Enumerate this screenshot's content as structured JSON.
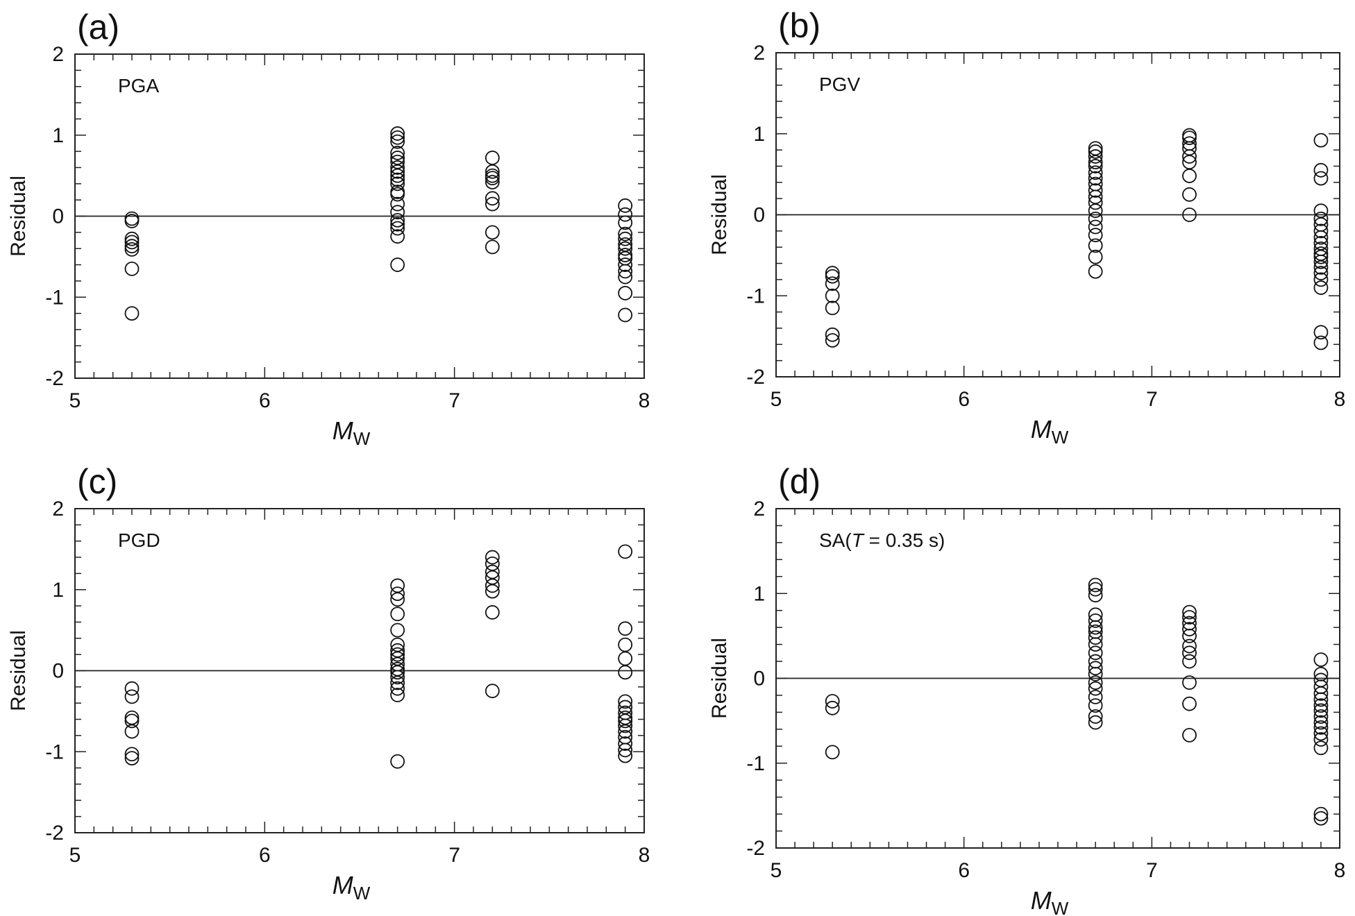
{
  "chart_data": [
    {
      "type": "scatter",
      "panel": "(a)",
      "annotation": "PGA",
      "xlabel": "M",
      "xlabel_sub": "W",
      "ylabel": "Residual",
      "xlim": [
        5,
        8
      ],
      "ylim": [
        -2,
        2
      ],
      "xticks": [
        "5",
        "6",
        "7",
        "8"
      ],
      "yticks": [
        "2",
        "1",
        "0",
        "-1",
        "-2"
      ],
      "zero_line": true,
      "series": [
        {
          "x": 5.3,
          "y": [
            -0.03,
            -0.06,
            -0.28,
            -0.32,
            -0.37,
            -0.41,
            -0.65,
            -1.2
          ]
        },
        {
          "x": 6.7,
          "y": [
            1.02,
            0.97,
            0.92,
            0.78,
            0.72,
            0.67,
            0.6,
            0.55,
            0.5,
            0.45,
            0.4,
            0.3,
            0.27,
            0.15,
            0.05,
            -0.05,
            -0.1,
            -0.15,
            -0.25,
            -0.6
          ]
        },
        {
          "x": 7.2,
          "y": [
            0.72,
            0.55,
            0.5,
            0.47,
            0.42,
            0.22,
            0.15,
            -0.2,
            -0.38
          ]
        },
        {
          "x": 7.9,
          "y": [
            0.13,
            0.02,
            -0.08,
            -0.22,
            -0.28,
            -0.35,
            -0.4,
            -0.48,
            -0.52,
            -0.6,
            -0.68,
            -0.75,
            -0.95,
            -1.22
          ]
        }
      ]
    },
    {
      "type": "scatter",
      "panel": "(b)",
      "annotation": "PGV",
      "xlabel": "M",
      "xlabel_sub": "W",
      "ylabel": "Residual",
      "xlim": [
        5,
        8
      ],
      "ylim": [
        -2,
        2
      ],
      "xticks": [
        "5",
        "6",
        "7",
        "8"
      ],
      "yticks": [
        "2",
        "1",
        "0",
        "-1",
        "-2"
      ],
      "zero_line": true,
      "series": [
        {
          "x": 5.3,
          "y": [
            -0.72,
            -0.76,
            -0.85,
            -1.0,
            -1.15,
            -1.48,
            -1.55
          ]
        },
        {
          "x": 6.7,
          "y": [
            0.82,
            0.78,
            0.72,
            0.65,
            0.6,
            0.52,
            0.45,
            0.38,
            0.3,
            0.22,
            0.15,
            0.05,
            -0.05,
            -0.15,
            -0.25,
            -0.38,
            -0.52,
            -0.7
          ]
        },
        {
          "x": 7.2,
          "y": [
            0.98,
            0.95,
            0.88,
            0.82,
            0.72,
            0.65,
            0.48,
            0.25,
            0.0
          ]
        },
        {
          "x": 7.9,
          "y": [
            0.92,
            0.55,
            0.45,
            0.05,
            -0.05,
            -0.12,
            -0.2,
            -0.28,
            -0.35,
            -0.42,
            -0.48,
            -0.52,
            -0.58,
            -0.65,
            -0.72,
            -0.8,
            -0.9,
            -1.45,
            -1.58
          ]
        }
      ]
    },
    {
      "type": "scatter",
      "panel": "(c)",
      "annotation": "PGD",
      "xlabel": "M",
      "xlabel_sub": "W",
      "ylabel": "Residual",
      "xlim": [
        5,
        8
      ],
      "ylim": [
        -2,
        2
      ],
      "xticks": [
        "5",
        "6",
        "7",
        "8"
      ],
      "yticks": [
        "2",
        "1",
        "0",
        "-1",
        "-2"
      ],
      "zero_line": true,
      "series": [
        {
          "x": 5.3,
          "y": [
            -0.22,
            -0.32,
            -0.58,
            -0.62,
            -0.75,
            -1.03,
            -1.08
          ]
        },
        {
          "x": 6.7,
          "y": [
            1.05,
            0.95,
            0.88,
            0.7,
            0.5,
            0.32,
            0.25,
            0.2,
            0.15,
            0.08,
            0.02,
            -0.02,
            -0.08,
            -0.15,
            -0.22,
            -0.3,
            -1.12
          ]
        },
        {
          "x": 7.2,
          "y": [
            1.4,
            1.32,
            1.22,
            1.15,
            1.05,
            0.98,
            0.72,
            -0.25
          ]
        },
        {
          "x": 7.9,
          "y": [
            1.47,
            0.52,
            0.32,
            0.15,
            -0.02,
            -0.38,
            -0.45,
            -0.52,
            -0.58,
            -0.62,
            -0.68,
            -0.75,
            -0.82,
            -0.9,
            -0.98,
            -1.05
          ]
        }
      ]
    },
    {
      "type": "scatter",
      "panel": "(d)",
      "annotation_prefix": "SA(",
      "annotation_italic": "T",
      "annotation_suffix": " = 0.35 s)",
      "xlabel": "M",
      "xlabel_sub": "W",
      "ylabel": "Residual",
      "xlim": [
        5,
        8
      ],
      "ylim": [
        -2,
        2
      ],
      "xticks": [
        "5",
        "6",
        "7",
        "8"
      ],
      "yticks": [
        "2",
        "1",
        "0",
        "-1",
        "-2"
      ],
      "zero_line": true,
      "series": [
        {
          "x": 5.3,
          "y": [
            -0.27,
            -0.35,
            -0.87
          ]
        },
        {
          "x": 6.7,
          "y": [
            1.1,
            1.05,
            0.98,
            0.75,
            0.68,
            0.6,
            0.55,
            0.48,
            0.4,
            0.3,
            0.2,
            0.12,
            0.05,
            -0.05,
            -0.12,
            -0.22,
            -0.32,
            -0.45,
            -0.52
          ]
        },
        {
          "x": 7.2,
          "y": [
            0.78,
            0.72,
            0.65,
            0.58,
            0.5,
            0.38,
            0.3,
            0.2,
            -0.05,
            -0.3,
            -0.67
          ]
        },
        {
          "x": 7.9,
          "y": [
            0.22,
            0.05,
            -0.02,
            -0.1,
            -0.18,
            -0.25,
            -0.32,
            -0.38,
            -0.45,
            -0.52,
            -0.58,
            -0.65,
            -0.72,
            -0.82,
            -1.6,
            -1.65
          ]
        }
      ]
    }
  ]
}
